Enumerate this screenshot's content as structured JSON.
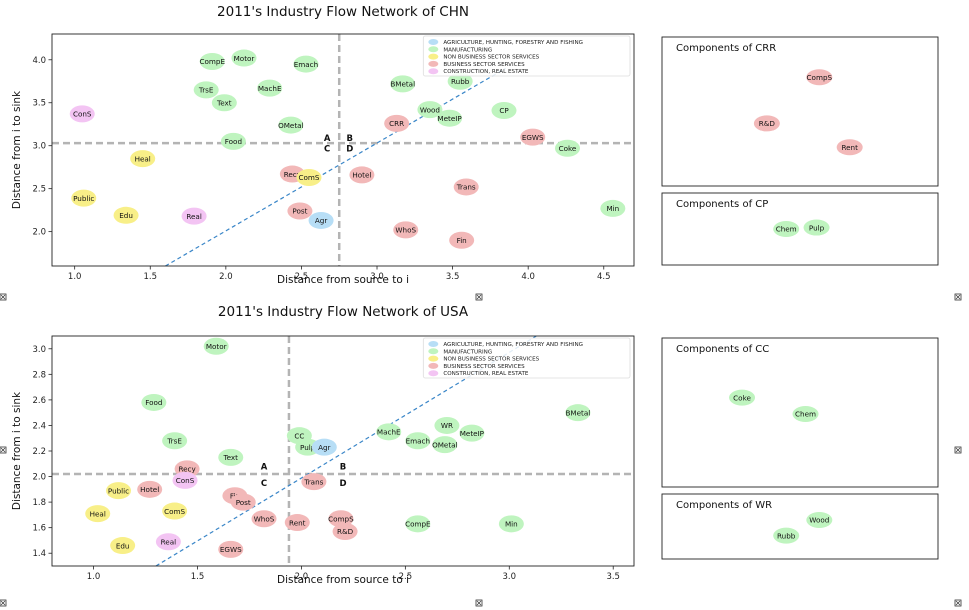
{
  "colors": {
    "agri": "#b7def6",
    "manu": "#bff4bf",
    "nonbiz": "#f8ef88",
    "biz": "#f2b8b8",
    "constr": "#f3c4f3",
    "guide": "#b4b4b4",
    "trend": "#3a86c8"
  },
  "chart_data": [
    {
      "id": "chn",
      "type": "scatter",
      "title": "2011's Industry Flow Network of CHN",
      "xlabel": "Distance from source to i",
      "ylabel": "Distance from i to sink",
      "xlim": [
        0.85,
        4.7
      ],
      "ylim": [
        1.6,
        4.3
      ],
      "xticks": [
        1.0,
        1.5,
        2.0,
        2.5,
        3.0,
        3.5,
        4.0,
        4.5
      ],
      "yticks": [
        2.0,
        2.5,
        3.0,
        3.5,
        4.0
      ],
      "xtick_labels": [
        "1.0",
        "1.5",
        "2.0",
        "2.5",
        "3.0",
        "3.5",
        "4.0",
        "4.5"
      ],
      "ytick_labels": [
        "2.0",
        "2.5",
        "3.0",
        "3.5",
        "4.0"
      ],
      "vline": 2.75,
      "hline": 3.03,
      "trend": [
        [
          1.6,
          1.6
        ],
        [
          3.85,
          3.9
        ]
      ],
      "quadrants": [
        {
          "label": "A",
          "x": 2.67,
          "y": 3.09
        },
        {
          "label": "B",
          "x": 2.82,
          "y": 3.09
        },
        {
          "label": "C",
          "x": 2.67,
          "y": 2.97
        },
        {
          "label": "D",
          "x": 2.82,
          "y": 2.97
        }
      ],
      "legend": [
        {
          "label": "AGRICULTURE, HUNTING, FORESTRY AND FISHING",
          "cat": "agri"
        },
        {
          "label": "MANUFACTURING",
          "cat": "manu"
        },
        {
          "label": "NON BUSINESS SECTOR SERVICES",
          "cat": "nonbiz"
        },
        {
          "label": "BUSINESS SECTOR SERVICES",
          "cat": "biz"
        },
        {
          "label": "CONSTRUCTION, REAL ESTATE",
          "cat": "constr"
        }
      ],
      "points": [
        {
          "label": "CompE",
          "x": 1.91,
          "y": 3.98,
          "cat": "manu"
        },
        {
          "label": "Motor",
          "x": 2.12,
          "y": 4.02,
          "cat": "manu"
        },
        {
          "label": "Emach",
          "x": 2.53,
          "y": 3.95,
          "cat": "manu"
        },
        {
          "label": "TrsE",
          "x": 1.87,
          "y": 3.65,
          "cat": "manu"
        },
        {
          "label": "MachE",
          "x": 2.29,
          "y": 3.67,
          "cat": "manu"
        },
        {
          "label": "Text",
          "x": 1.99,
          "y": 3.5,
          "cat": "manu"
        },
        {
          "label": "ConS",
          "x": 1.05,
          "y": 3.37,
          "cat": "constr"
        },
        {
          "label": "OMetal",
          "x": 2.43,
          "y": 3.24,
          "cat": "manu"
        },
        {
          "label": "Food",
          "x": 2.05,
          "y": 3.05,
          "cat": "manu"
        },
        {
          "label": "Heal",
          "x": 1.45,
          "y": 2.85,
          "cat": "nonbiz"
        },
        {
          "label": "Recy",
          "x": 2.44,
          "y": 2.67,
          "cat": "biz"
        },
        {
          "label": "ComS",
          "x": 2.55,
          "y": 2.63,
          "cat": "nonbiz"
        },
        {
          "label": "Public",
          "x": 1.06,
          "y": 2.39,
          "cat": "nonbiz"
        },
        {
          "label": "Edu",
          "x": 1.34,
          "y": 2.19,
          "cat": "nonbiz"
        },
        {
          "label": "Real",
          "x": 1.79,
          "y": 2.18,
          "cat": "constr"
        },
        {
          "label": "Post",
          "x": 2.49,
          "y": 2.24,
          "cat": "biz"
        },
        {
          "label": "Agr",
          "x": 2.63,
          "y": 2.13,
          "cat": "agri"
        },
        {
          "label": "Hotel",
          "x": 2.9,
          "y": 2.66,
          "cat": "biz"
        },
        {
          "label": "BMetal",
          "x": 3.17,
          "y": 3.72,
          "cat": "manu"
        },
        {
          "label": "Rubb",
          "x": 3.55,
          "y": 3.75,
          "cat": "manu"
        },
        {
          "label": "Wood",
          "x": 3.35,
          "y": 3.42,
          "cat": "manu"
        },
        {
          "label": "MeteIP",
          "x": 3.48,
          "y": 3.32,
          "cat": "manu"
        },
        {
          "label": "CRR",
          "x": 3.13,
          "y": 3.26,
          "cat": "biz"
        },
        {
          "label": "CP",
          "x": 3.84,
          "y": 3.41,
          "cat": "manu"
        },
        {
          "label": "EGWS",
          "x": 4.03,
          "y": 3.1,
          "cat": "biz"
        },
        {
          "label": "Coke",
          "x": 4.26,
          "y": 2.97,
          "cat": "manu"
        },
        {
          "label": "Trans",
          "x": 3.59,
          "y": 2.52,
          "cat": "biz"
        },
        {
          "label": "Min",
          "x": 4.56,
          "y": 2.27,
          "cat": "manu"
        },
        {
          "label": "WhoS",
          "x": 3.19,
          "y": 2.02,
          "cat": "biz"
        },
        {
          "label": "Fin",
          "x": 3.56,
          "y": 1.9,
          "cat": "biz"
        }
      ]
    },
    {
      "id": "usa",
      "type": "scatter",
      "title": "2011's Industry Flow Network of USA",
      "xlabel": "Distance from source to i",
      "ylabel": "Distance from i to sink",
      "xlim": [
        0.8,
        3.6
      ],
      "ylim": [
        1.3,
        3.1
      ],
      "xticks": [
        1.0,
        1.5,
        2.0,
        2.5,
        3.0,
        3.5
      ],
      "yticks": [
        1.4,
        1.6,
        1.8,
        2.0,
        2.2,
        2.4,
        2.6,
        2.8,
        3.0
      ],
      "xtick_labels": [
        "1.0",
        "1.5",
        "2.0",
        "2.5",
        "3.0",
        "3.5"
      ],
      "ytick_labels": [
        "1.4",
        "1.6",
        "1.8",
        "2.0",
        "2.2",
        "2.4",
        "2.6",
        "2.8",
        "3.0"
      ],
      "vline": 1.94,
      "hline": 2.02,
      "trend": [
        [
          1.3,
          1.3
        ],
        [
          3.13,
          3.1
        ]
      ],
      "quadrants": [
        {
          "label": "A",
          "x": 1.82,
          "y": 2.08
        },
        {
          "label": "B",
          "x": 2.2,
          "y": 2.08
        },
        {
          "label": "C",
          "x": 1.82,
          "y": 1.95
        },
        {
          "label": "D",
          "x": 2.2,
          "y": 1.95
        }
      ],
      "legend": [
        {
          "label": "AGRICULTURE, HUNTING, FORESTRY AND FISHING",
          "cat": "agri"
        },
        {
          "label": "MANUFACTURING",
          "cat": "manu"
        },
        {
          "label": "NON BUSINESS SECTOR SERVICES",
          "cat": "nonbiz"
        },
        {
          "label": "BUSINESS SECTOR SERVICES",
          "cat": "biz"
        },
        {
          "label": "CONSTRUCTION, REAL ESTATE",
          "cat": "constr"
        }
      ],
      "points": [
        {
          "label": "Motor",
          "x": 1.59,
          "y": 3.02,
          "cat": "manu"
        },
        {
          "label": "Food",
          "x": 1.29,
          "y": 2.58,
          "cat": "manu"
        },
        {
          "label": "TrsE",
          "x": 1.39,
          "y": 2.28,
          "cat": "manu"
        },
        {
          "label": "Text",
          "x": 1.66,
          "y": 2.15,
          "cat": "manu"
        },
        {
          "label": "CC",
          "x": 1.99,
          "y": 2.32,
          "cat": "manu"
        },
        {
          "label": "Pulp",
          "x": 2.03,
          "y": 2.23,
          "cat": "manu"
        },
        {
          "label": "Agr",
          "x": 2.11,
          "y": 2.23,
          "cat": "agri"
        },
        {
          "label": "MachE",
          "x": 2.42,
          "y": 2.35,
          "cat": "manu"
        },
        {
          "label": "Emach",
          "x": 2.56,
          "y": 2.28,
          "cat": "manu"
        },
        {
          "label": "WR",
          "x": 2.7,
          "y": 2.4,
          "cat": "manu"
        },
        {
          "label": "MeteIP",
          "x": 2.82,
          "y": 2.34,
          "cat": "manu"
        },
        {
          "label": "OMetal",
          "x": 2.69,
          "y": 2.25,
          "cat": "manu"
        },
        {
          "label": "BMetal",
          "x": 3.33,
          "y": 2.5,
          "cat": "manu"
        },
        {
          "label": "Recy",
          "x": 1.45,
          "y": 2.06,
          "cat": "biz"
        },
        {
          "label": "ConS",
          "x": 1.44,
          "y": 1.97,
          "cat": "constr"
        },
        {
          "label": "Public",
          "x": 1.12,
          "y": 1.89,
          "cat": "nonbiz"
        },
        {
          "label": "Hotel",
          "x": 1.27,
          "y": 1.9,
          "cat": "biz"
        },
        {
          "label": "Heal",
          "x": 1.02,
          "y": 1.71,
          "cat": "nonbiz"
        },
        {
          "label": "ComS",
          "x": 1.39,
          "y": 1.73,
          "cat": "nonbiz"
        },
        {
          "label": "Fin",
          "x": 1.68,
          "y": 1.85,
          "cat": "biz"
        },
        {
          "label": "Post",
          "x": 1.72,
          "y": 1.8,
          "cat": "biz"
        },
        {
          "label": "WhoS",
          "x": 1.82,
          "y": 1.67,
          "cat": "biz"
        },
        {
          "label": "Rent",
          "x": 1.98,
          "y": 1.64,
          "cat": "biz"
        },
        {
          "label": "CompS",
          "x": 2.19,
          "y": 1.67,
          "cat": "biz"
        },
        {
          "label": "R&D",
          "x": 2.21,
          "y": 1.57,
          "cat": "biz"
        },
        {
          "label": "Trans",
          "x": 2.06,
          "y": 1.96,
          "cat": "biz"
        },
        {
          "label": "CompE",
          "x": 2.56,
          "y": 1.63,
          "cat": "manu"
        },
        {
          "label": "Min",
          "x": 3.01,
          "y": 1.63,
          "cat": "manu"
        },
        {
          "label": "Edu",
          "x": 1.14,
          "y": 1.46,
          "cat": "nonbiz"
        },
        {
          "label": "Real",
          "x": 1.36,
          "y": 1.49,
          "cat": "constr"
        },
        {
          "label": "EGWS",
          "x": 1.66,
          "y": 1.43,
          "cat": "biz"
        }
      ]
    }
  ],
  "components": [
    {
      "id": "crr",
      "title": "Components of CRR",
      "items": [
        {
          "label": "CompS",
          "cat": "biz",
          "fx": 0.57,
          "fy": 0.27
        },
        {
          "label": "R&D",
          "cat": "biz",
          "fx": 0.38,
          "fy": 0.58
        },
        {
          "label": "Rent",
          "cat": "biz",
          "fx": 0.68,
          "fy": 0.74
        }
      ]
    },
    {
      "id": "cp",
      "title": "Components of CP",
      "items": [
        {
          "label": "Chem",
          "cat": "manu",
          "fx": 0.45,
          "fy": 0.5
        },
        {
          "label": "Pulp",
          "cat": "manu",
          "fx": 0.56,
          "fy": 0.48
        }
      ]
    },
    {
      "id": "cc",
      "title": "Components of CC",
      "items": [
        {
          "label": "Coke",
          "cat": "manu",
          "fx": 0.29,
          "fy": 0.4
        },
        {
          "label": "Chem",
          "cat": "manu",
          "fx": 0.52,
          "fy": 0.51
        }
      ]
    },
    {
      "id": "wr",
      "title": "Components of WR",
      "items": [
        {
          "label": "Rubb",
          "cat": "manu",
          "fx": 0.45,
          "fy": 0.64
        },
        {
          "label": "Wood",
          "cat": "manu",
          "fx": 0.57,
          "fy": 0.4
        }
      ]
    }
  ]
}
